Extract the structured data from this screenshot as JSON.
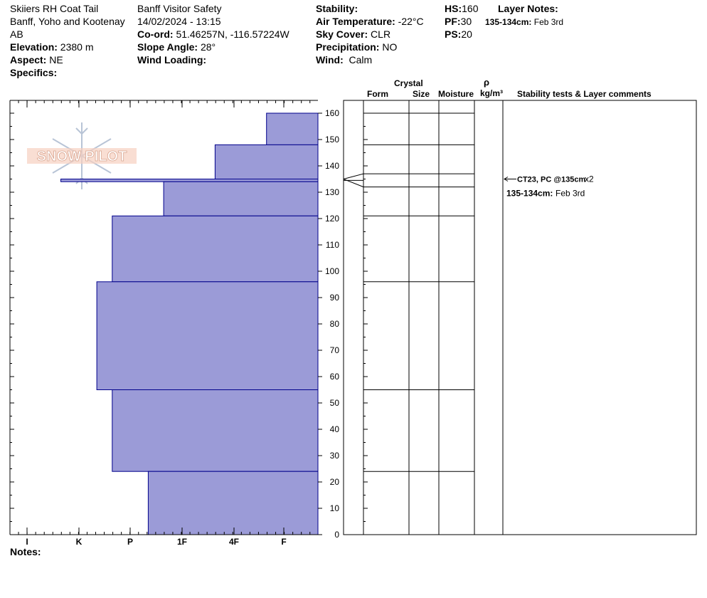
{
  "header": {
    "col1": {
      "line1": "Skiiers RH Coat Tail",
      "line2": "Banff, Yoho and Kootenay",
      "line3": "AB",
      "elevation_label": "Elevation:",
      "elevation": "2380 m",
      "aspect_label": "Aspect:",
      "aspect": "NE",
      "specifics_label": "Specifics:"
    },
    "col2": {
      "org": "Banff  Visitor Safety",
      "datetime": "14/02/2024 - 13:15",
      "coord_label": "Co-ord:",
      "coord": "51.46257N, -116.57224W",
      "slope_label": "Slope Angle:",
      "slope": "28°",
      "wind_loading_label": "Wind Loading:"
    },
    "col3": {
      "stability_label": "Stability:",
      "air_temp_label": "Air Temperature:",
      "air_temp": "-22°C",
      "sky_label": "Sky Cover:",
      "sky": "CLR",
      "precip_label": "Precipitation:",
      "precip": "NO",
      "wind_label": "Wind:",
      "wind": "Calm"
    },
    "col4": {
      "hs_label": "HS:",
      "hs": "160",
      "pf_label": "PF:",
      "pf": "30",
      "ps_label": "PS:",
      "ps": "20"
    },
    "col5": {
      "title": "Layer Notes:",
      "note_depth": "135-134cm:",
      "note_text": "Feb 3rd"
    }
  },
  "columns": {
    "crystal": "Crystal",
    "form": "Form",
    "size": "Size",
    "moisture": "Moisture",
    "rho": "ρ",
    "density_unit": "kg/m³",
    "stability": "Stability tests & Layer comments"
  },
  "notes_label": "Notes:",
  "logo_text": "SNOW PILOT",
  "colors": {
    "layer_fill": "#9b9bd7",
    "layer_stroke": "#00008b",
    "axis": "#000000"
  },
  "chart_data": {
    "type": "bar",
    "orientation": "horizontal",
    "x_categories": [
      "I",
      "K",
      "P",
      "1F",
      "4F",
      "F"
    ],
    "x_values": {
      "I": 6,
      "K": 5,
      "P": 4,
      "1F": 3,
      "4F": 2,
      "F": 1
    },
    "ylabel": "",
    "ylim": [
      0,
      165
    ],
    "y_ticks": [
      0,
      10,
      20,
      30,
      40,
      50,
      60,
      70,
      80,
      90,
      100,
      110,
      120,
      130,
      140,
      150,
      160
    ],
    "layers": [
      {
        "top": 160,
        "bottom": 148,
        "hardness": 1
      },
      {
        "top": 148,
        "bottom": 135,
        "hardness": 2
      },
      {
        "top": 135,
        "bottom": 134,
        "hardness": 5
      },
      {
        "top": 134,
        "bottom": 121,
        "hardness": 3
      },
      {
        "top": 121,
        "bottom": 96,
        "hardness": 4
      },
      {
        "top": 96,
        "bottom": 55,
        "hardness": 4.3
      },
      {
        "top": 55,
        "bottom": 24,
        "hardness": 4
      },
      {
        "top": 24,
        "bottom": 0,
        "hardness": 3.3
      }
    ],
    "layer_boundaries": [
      160,
      148,
      137,
      132,
      121,
      96,
      55,
      24
    ],
    "stability_test": {
      "depth": 135,
      "text": "CT23, PC @135cm",
      "multiplier": "x2"
    },
    "layer_comment": {
      "depth": "135-134cm:",
      "text": "Feb 3rd"
    }
  }
}
